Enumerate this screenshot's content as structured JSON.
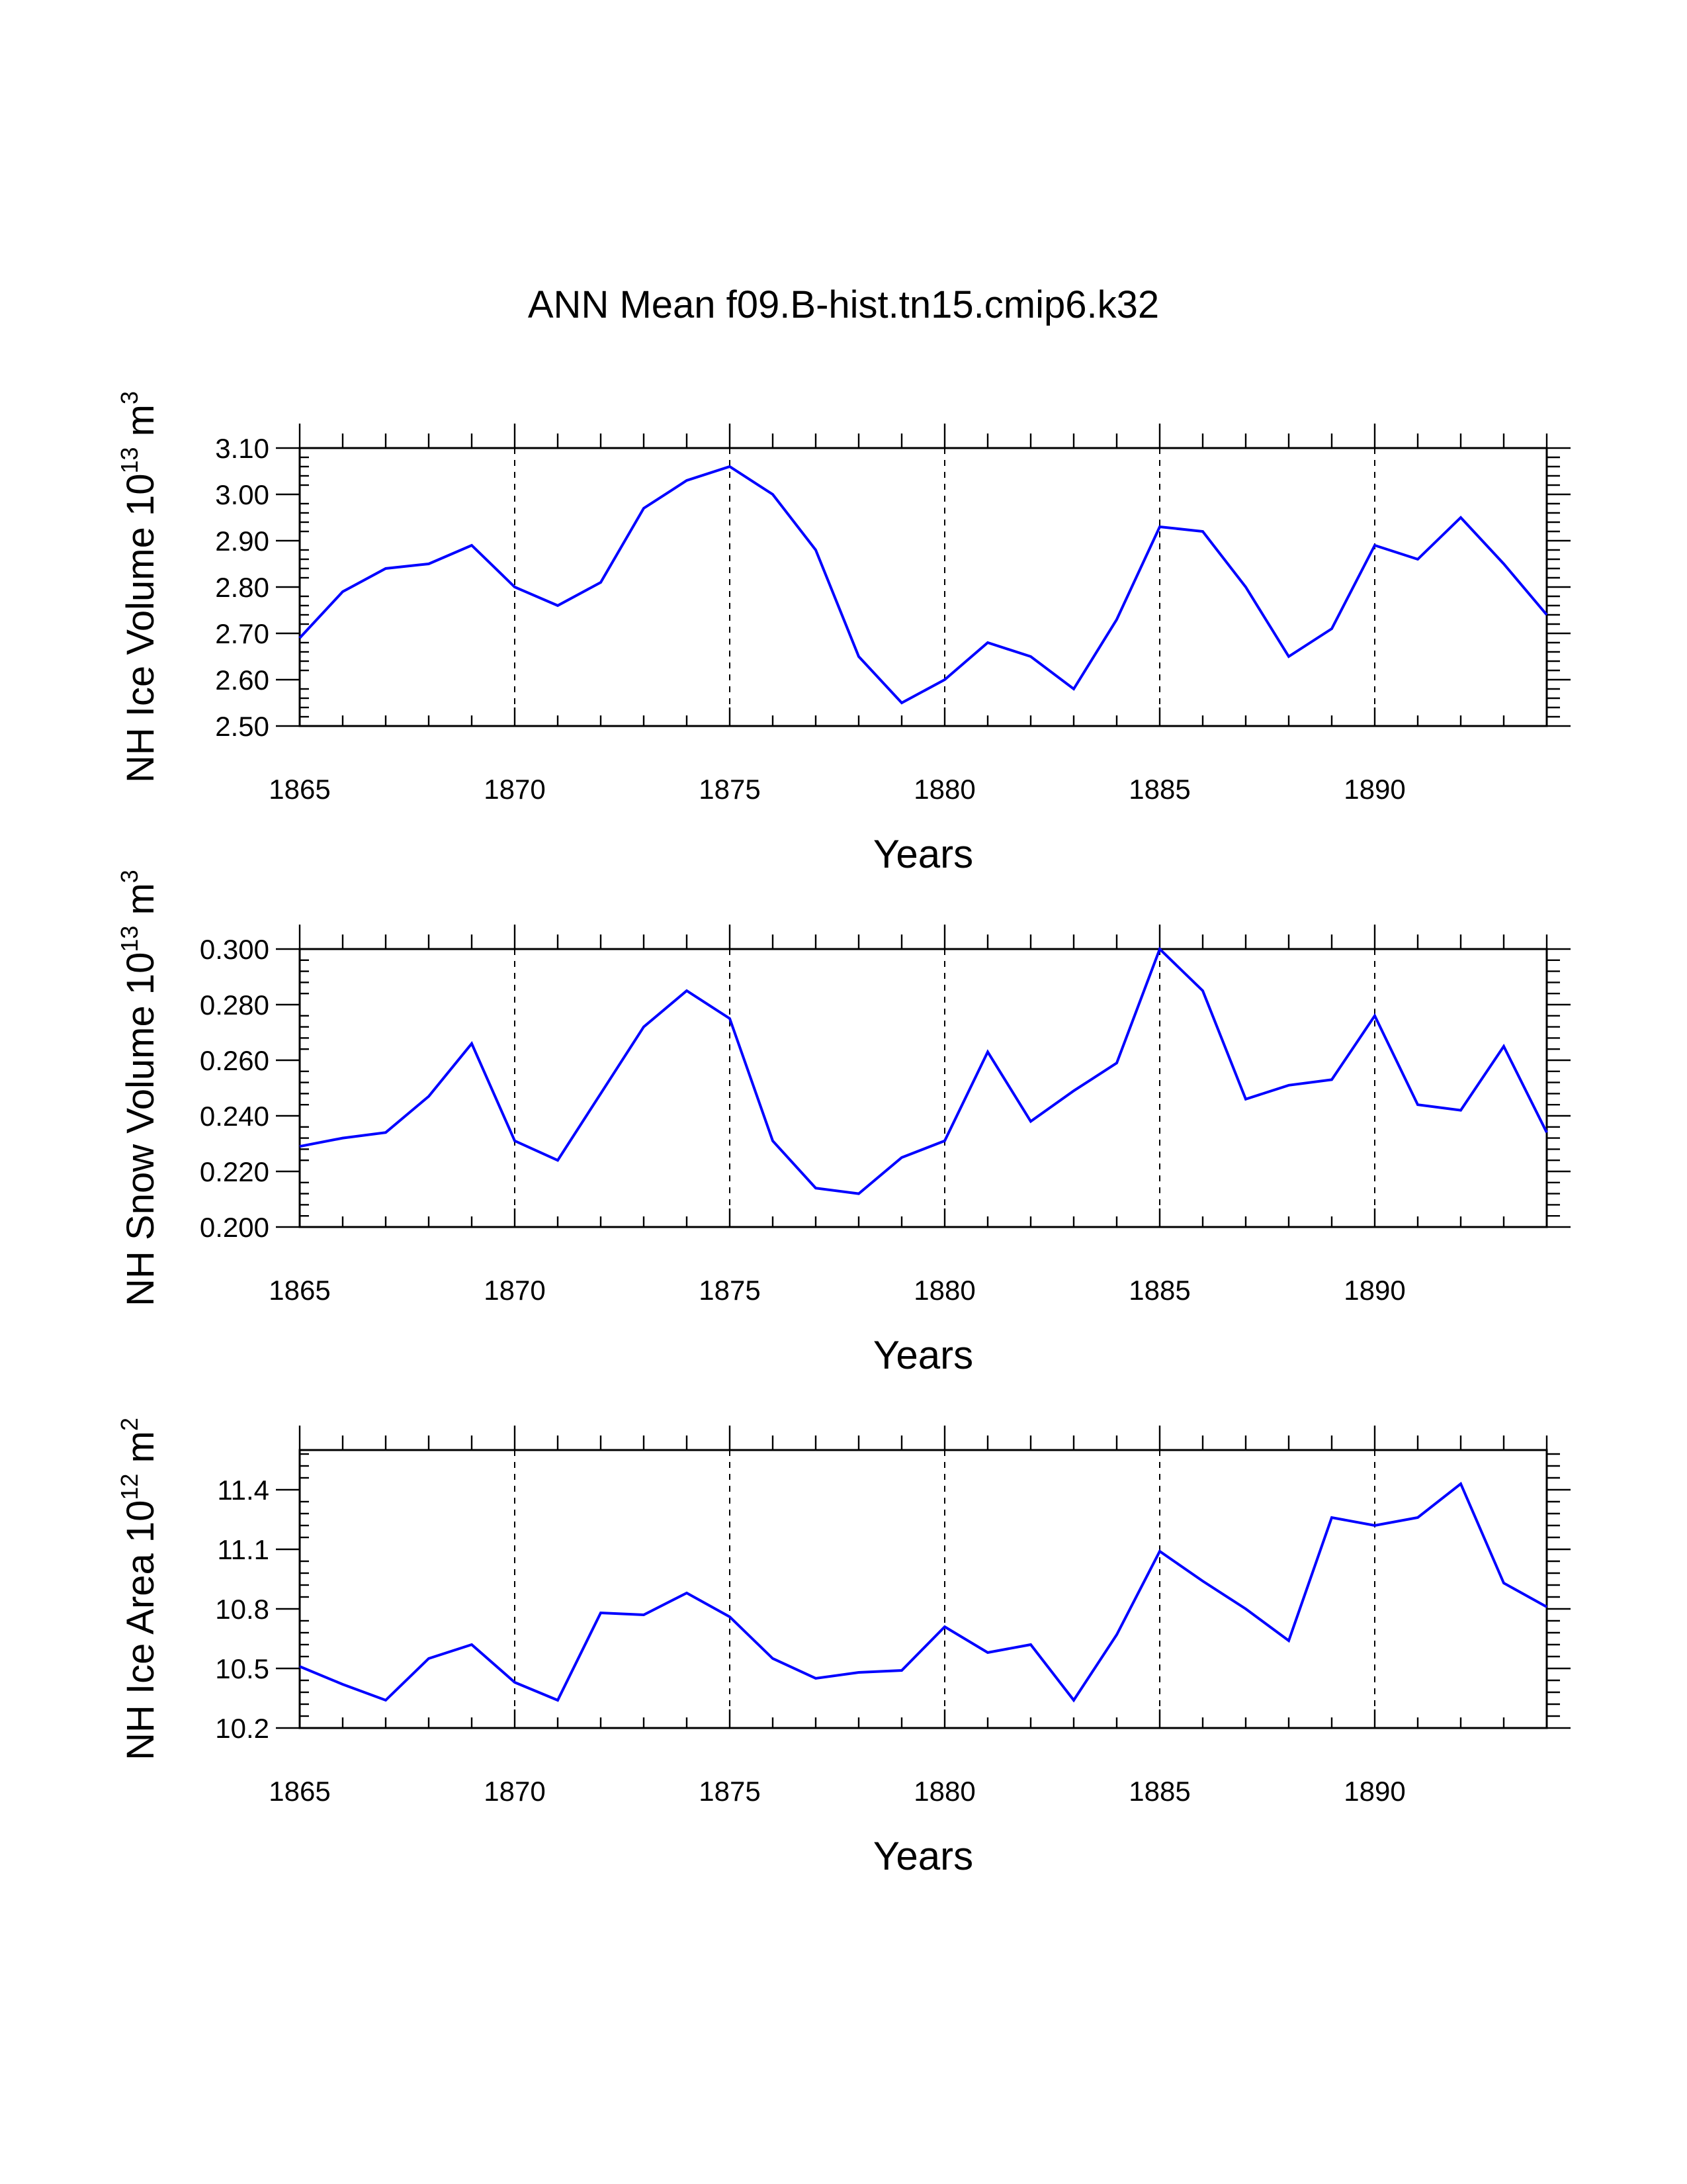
{
  "title": "ANN Mean f09.B-hist.tn15.cmip6.k32",
  "chart_data": [
    {
      "type": "line",
      "title": "",
      "xlabel": "Years",
      "ylabel": "NH Ice Volume 10",
      "ylabel_exponent": "13",
      "ylabel_unit": "m",
      "ylabel_unit_exponent": "3",
      "xlim": [
        1865,
        1894
      ],
      "ylim": [
        2.5,
        3.1
      ],
      "yticks": [
        "3.10",
        "3.00",
        "2.90",
        "2.80",
        "2.70",
        "2.60",
        "2.50"
      ],
      "ytick_values": [
        3.1,
        3.0,
        2.9,
        2.8,
        2.7,
        2.6,
        2.5
      ],
      "xticks": [
        "1865",
        "1870",
        "1875",
        "1880",
        "1885",
        "1890"
      ],
      "xtick_values": [
        1865,
        1870,
        1875,
        1880,
        1885,
        1890
      ],
      "grid": "vertical dashed at labeled years",
      "line_color": "#0000ff",
      "x": [
        1865,
        1866,
        1867,
        1868,
        1869,
        1870,
        1871,
        1872,
        1873,
        1874,
        1875,
        1876,
        1877,
        1878,
        1879,
        1880,
        1881,
        1882,
        1883,
        1884,
        1885,
        1886,
        1887,
        1888,
        1889,
        1890,
        1891,
        1892,
        1893,
        1894
      ],
      "values": [
        2.69,
        2.79,
        2.84,
        2.85,
        2.89,
        2.8,
        2.76,
        2.81,
        2.97,
        3.03,
        3.06,
        3.0,
        2.88,
        2.65,
        2.55,
        2.6,
        2.68,
        2.65,
        2.58,
        2.73,
        2.93,
        2.92,
        2.8,
        2.65,
        2.71,
        2.89,
        2.86,
        2.95,
        2.85,
        2.74
      ]
    },
    {
      "type": "line",
      "title": "",
      "xlabel": "Years",
      "ylabel": "NH Snow Volume 10",
      "ylabel_exponent": "13",
      "ylabel_unit": "m",
      "ylabel_unit_exponent": "3",
      "xlim": [
        1865,
        1894
      ],
      "ylim": [
        0.2,
        0.3
      ],
      "yticks": [
        "0.300",
        "0.280",
        "0.260",
        "0.240",
        "0.220",
        "0.200"
      ],
      "ytick_values": [
        0.3,
        0.28,
        0.26,
        0.24,
        0.22,
        0.2
      ],
      "xticks": [
        "1865",
        "1870",
        "1875",
        "1880",
        "1885",
        "1890"
      ],
      "xtick_values": [
        1865,
        1870,
        1875,
        1880,
        1885,
        1890
      ],
      "grid": "vertical dashed at labeled years",
      "line_color": "#0000ff",
      "x": [
        1865,
        1866,
        1867,
        1868,
        1869,
        1870,
        1871,
        1872,
        1873,
        1874,
        1875,
        1876,
        1877,
        1878,
        1879,
        1880,
        1881,
        1882,
        1883,
        1884,
        1885,
        1886,
        1887,
        1888,
        1889,
        1890,
        1891,
        1892,
        1893,
        1894
      ],
      "values": [
        0.229,
        0.232,
        0.234,
        0.247,
        0.266,
        0.231,
        0.224,
        0.248,
        0.272,
        0.285,
        0.275,
        0.231,
        0.214,
        0.212,
        0.225,
        0.231,
        0.263,
        0.238,
        0.249,
        0.259,
        0.3,
        0.285,
        0.246,
        0.251,
        0.253,
        0.276,
        0.244,
        0.242,
        0.265,
        0.234
      ]
    },
    {
      "type": "line",
      "title": "",
      "xlabel": "Years",
      "ylabel": "NH Ice Area 10",
      "ylabel_exponent": "12",
      "ylabel_unit": "m",
      "ylabel_unit_exponent": "2",
      "xlim": [
        1865,
        1894
      ],
      "ylim": [
        10.2,
        11.6
      ],
      "yticks": [
        "11.4",
        "11.1",
        "10.8",
        "10.5",
        "10.2"
      ],
      "ytick_values": [
        11.4,
        11.1,
        10.8,
        10.5,
        10.2
      ],
      "xticks": [
        "1865",
        "1870",
        "1875",
        "1880",
        "1885",
        "1890"
      ],
      "xtick_values": [
        1865,
        1870,
        1875,
        1880,
        1885,
        1890
      ],
      "grid": "vertical dashed at labeled years",
      "line_color": "#0000ff",
      "x": [
        1865,
        1866,
        1867,
        1868,
        1869,
        1870,
        1871,
        1872,
        1873,
        1874,
        1875,
        1876,
        1877,
        1878,
        1879,
        1880,
        1881,
        1882,
        1883,
        1884,
        1885,
        1886,
        1887,
        1888,
        1889,
        1890,
        1891,
        1892,
        1893,
        1894
      ],
      "values": [
        10.51,
        10.42,
        10.34,
        10.55,
        10.62,
        10.43,
        10.34,
        10.78,
        10.77,
        10.88,
        10.76,
        10.55,
        10.45,
        10.48,
        10.49,
        10.71,
        10.58,
        10.62,
        10.34,
        10.67,
        11.09,
        10.94,
        10.8,
        10.64,
        11.26,
        11.22,
        11.26,
        11.43,
        10.93,
        10.81
      ]
    }
  ]
}
